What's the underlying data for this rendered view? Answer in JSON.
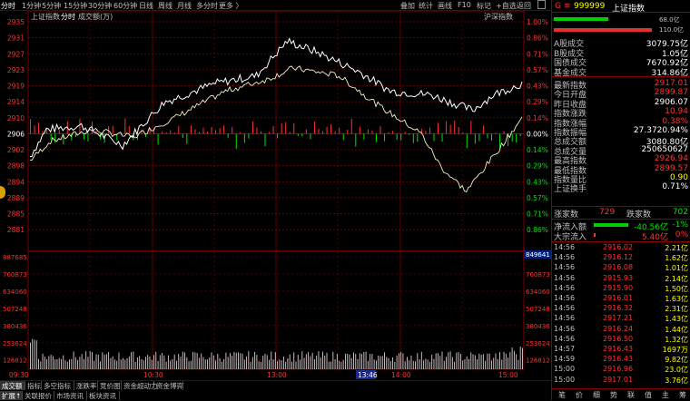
{
  "toolbar": {
    "left": [
      "分时",
      "1分钟",
      "5分钟",
      "15分钟",
      "30分钟",
      "60分钟",
      "日线",
      "周线",
      "月线",
      "多分时",
      "更多 〉"
    ],
    "right": [
      "叠加",
      "统计",
      "画线",
      "F10",
      "标记",
      "+自选",
      "返回"
    ],
    "copy_icon": "copy-icon"
  },
  "chart": {
    "title": "上证指数",
    "mode": "分时",
    "vol_label": "成交额(万)",
    "compare_label": "沪深指数",
    "y_left": [
      "2935",
      "2931",
      "2927",
      "2923",
      "2919",
      "2914",
      "2910",
      "2906",
      "2902",
      "2898",
      "2894",
      "2889",
      "2885",
      "2881"
    ],
    "y_right": [
      "1.00%",
      "0.86%",
      "0.71%",
      "0.57%",
      "0.43%",
      "0.29%",
      "0.14%",
      "0.00%",
      "0.14%",
      "0.29%",
      "0.43%",
      "0.57%",
      "0.71%",
      "0.86%"
    ],
    "vol_left": [
      "887685",
      "760873",
      "634060",
      "507248",
      "380436",
      "253624",
      "126812"
    ],
    "vol_right": [
      "760873",
      "634060",
      "507248",
      "380436",
      "253624",
      "126812"
    ],
    "vol_highlight": "849641",
    "time_labels": [
      "09:30",
      "10:30",
      "13:00",
      "14:00",
      "15:00"
    ],
    "cursor_time": "13:46",
    "colors": {
      "up": "#ff3232",
      "down": "#00e600",
      "price": "#ffffff",
      "avg": "#ffff00",
      "grid": "#7a0000"
    }
  },
  "chart_data": {
    "type": "line",
    "title": "上证指数",
    "ylim": [
      2881,
      2935
    ],
    "x": [
      "09:30",
      "10:30",
      "13:00",
      "14:00",
      "15:00"
    ],
    "series": [
      {
        "name": "上证指数",
        "values": [
          2905,
          2910,
          2926,
          2912,
          2917
        ]
      },
      {
        "name": "沪深指数",
        "values": [
          2904,
          2909,
          2923,
          2893,
          2912
        ]
      }
    ]
  },
  "bottom_tabs": [
    "成交额",
    "指标",
    "多空指标",
    "涨跌率",
    "竞价图",
    "资金超动力",
    "资金博弈"
  ],
  "bottom_tabs2": [
    "扩展↑",
    "关联报价",
    "市场资讯",
    "板块资讯"
  ],
  "right": {
    "header_code": "999999",
    "header_name": "上证指数",
    "mark": "G ≡",
    "bar1_value": "68.0亿",
    "bar2_value": "110.0亿",
    "stats": [
      {
        "label": "A股成交",
        "value": "3079.75亿",
        "color": "wht"
      },
      {
        "label": "B股成交",
        "value": "1.05亿",
        "color": "wht"
      },
      {
        "label": "国债成交",
        "value": "7670.92亿",
        "color": "wht"
      },
      {
        "label": "基金成交",
        "value": "314.86亿",
        "color": "wht"
      }
    ],
    "quotes": [
      {
        "label": "最新指数",
        "value": "2917.01",
        "color": "red"
      },
      {
        "label": "今日开盘",
        "value": "2899.87",
        "color": "red"
      },
      {
        "label": "昨日收盘",
        "value": "2906.07",
        "color": "wht"
      },
      {
        "label": "指数涨跌",
        "value": "10.94",
        "color": "red"
      },
      {
        "label": "指数涨幅",
        "value": "0.38%",
        "color": "red"
      },
      {
        "label": "指数振幅",
        "value": "27.3720.94%",
        "color": "wht"
      },
      {
        "label": "总成交额",
        "value": "3080.80亿",
        "color": "wht"
      },
      {
        "label": "总成交量",
        "value": "250650627",
        "color": "wht"
      },
      {
        "label": "最高指数",
        "value": "2926.94",
        "color": "red"
      },
      {
        "label": "最低指数",
        "value": "2899.57",
        "color": "red"
      },
      {
        "label": "指数量比",
        "value": "0.90",
        "color": "yel"
      },
      {
        "label": "上证换手",
        "value": "0.71%",
        "color": "wht"
      }
    ],
    "updown": {
      "up_label": "涨家数",
      "up": "729",
      "down_label": "跌家数",
      "down": "702"
    },
    "flow": [
      {
        "label": "净流入额",
        "value": "-40.56亿",
        "pct": "-1%",
        "color": "green"
      },
      {
        "label": "大宗流入",
        "value": "5.40亿",
        "pct": "0%",
        "color": "red"
      }
    ],
    "ticks": [
      {
        "t": "14:56",
        "p": "2916.02",
        "v": "2.21亿"
      },
      {
        "t": "14:56",
        "p": "2916.12",
        "v": "1.62亿"
      },
      {
        "t": "14:56",
        "p": "2916.08",
        "v": "1.01亿"
      },
      {
        "t": "14:56",
        "p": "2915.93",
        "v": "2.14亿"
      },
      {
        "t": "14:56",
        "p": "2915.90",
        "v": "1.50亿"
      },
      {
        "t": "14:56",
        "p": "2916.01",
        "v": "1.63亿"
      },
      {
        "t": "14:56",
        "p": "2916.32",
        "v": "2.31亿"
      },
      {
        "t": "14:56",
        "p": "2917.21",
        "v": "1.43亿"
      },
      {
        "t": "14:56",
        "p": "2916.24",
        "v": "1.44亿"
      },
      {
        "t": "14:56",
        "p": "2916.50",
        "v": "1.32亿"
      },
      {
        "t": "14:57",
        "p": "2916.43",
        "v": "1697万"
      },
      {
        "t": "14:59",
        "p": "2916.43",
        "v": "9.82亿"
      },
      {
        "t": "15:00",
        "p": "2916.96",
        "v": "23.0亿"
      },
      {
        "t": "15:00",
        "p": "2917.01",
        "v": "3.76亿"
      }
    ],
    "bottom_tabs": [
      "笔",
      "价",
      "细",
      "势",
      "联",
      "值",
      "主",
      "筹"
    ]
  }
}
